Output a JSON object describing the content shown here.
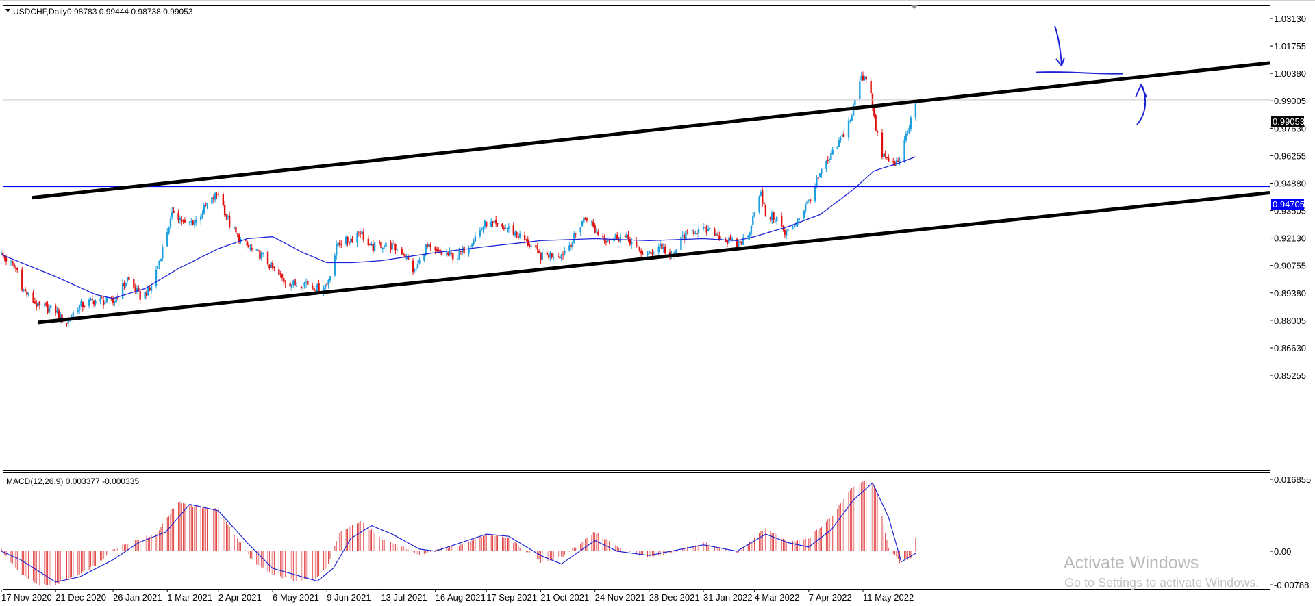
{
  "window": {
    "title_symbol": "USDCHF,Daily",
    "ohlc": "0.98783 0.99444 0.98738 0.99053",
    "macd_label": "MACD(12,26,9) 0.003377 -0.000335"
  },
  "price_axis": {
    "ticks": [
      "1.03130",
      "1.01755",
      "1.00380",
      "0.99005",
      "0.97630",
      "0.96255",
      "0.94880",
      "0.93505",
      "0.92130",
      "0.90755",
      "0.89380",
      "0.88005",
      "0.86630",
      "0.85255"
    ],
    "current_price": "0.99053",
    "level_label": "0.94705"
  },
  "macd_axis": {
    "ticks": [
      "0.016855",
      "0.00",
      "-0.00788"
    ]
  },
  "time_axis": {
    "labels": [
      "17 Nov 2020",
      "21 Dec 2020",
      "26 Jan 2021",
      "1 Mar 2021",
      "2 Apr 2021",
      "6 May 2021",
      "9 Jun 2021",
      "13 Jul 2021",
      "16 Aug 2021",
      "17 Sep 2021",
      "21 Oct 2021",
      "24 Nov 2021",
      "28 Dec 2021",
      "31 Jan 2022",
      "4 Mar 2022",
      "7 Apr 2022",
      "11 May 2022"
    ]
  },
  "watermark": {
    "line1": "Activate Windows",
    "line2": "Go to Settings to activate Windows."
  },
  "colors": {
    "bull": "#1e9fe0",
    "bear": "#e01010",
    "ma": "#1b22d6",
    "level": "#0000ff",
    "trend": "#000000",
    "hist": "#e04040"
  },
  "chart_data": {
    "type": "candlestick",
    "symbol": "USDCHF",
    "timeframe": "Daily",
    "ylim": [
      0.849,
      1.0365
    ],
    "price_path": [
      [
        "17 Nov 2020",
        0.913
      ],
      [
        "27 Nov 2020",
        0.905
      ],
      [
        "1 Dec 2020",
        0.895
      ],
      [
        "10 Dec 2020",
        0.887
      ],
      [
        "21 Dec 2020",
        0.885
      ],
      [
        "27 Dec 2020",
        0.878
      ],
      [
        "4 Jan 2021",
        0.887
      ],
      [
        "14 Jan 2021",
        0.89
      ],
      [
        "26 Jan 2021",
        0.889
      ],
      [
        "4 Feb 2021",
        0.901
      ],
      [
        "12 Feb 2021",
        0.892
      ],
      [
        "18 Feb 2021",
        0.895
      ],
      [
        "24 Feb 2021",
        0.91
      ],
      [
        "1 Mar 2021",
        0.925
      ],
      [
        "5 Mar 2021",
        0.935
      ],
      [
        "12 Mar 2021",
        0.928
      ],
      [
        "19 Mar 2021",
        0.93
      ],
      [
        "26 Mar 2021",
        0.938
      ],
      [
        "2 Apr 2021",
        0.944
      ],
      [
        "9 Apr 2021",
        0.928
      ],
      [
        "16 Apr 2021",
        0.92
      ],
      [
        "23 Apr 2021",
        0.915
      ],
      [
        "30 Apr 2021",
        0.912
      ],
      [
        "6 May 2021",
        0.906
      ],
      [
        "13 May 2021",
        0.9
      ],
      [
        "20 May 2021",
        0.898
      ],
      [
        "27 May 2021",
        0.899
      ],
      [
        "3 Jun 2021",
        0.896
      ],
      [
        "9 Jun 2021",
        0.898
      ],
      [
        "16 Jun 2021",
        0.919
      ],
      [
        "23 Jun 2021",
        0.92
      ],
      [
        "30 Jun 2021",
        0.925
      ],
      [
        "6 Jul 2021",
        0.916
      ],
      [
        "13 Jul 2021",
        0.918
      ],
      [
        "20 Jul 2021",
        0.917
      ],
      [
        "27 Jul 2021",
        0.914
      ],
      [
        "3 Aug 2021",
        0.904
      ],
      [
        "10 Aug 2021",
        0.917
      ],
      [
        "16 Aug 2021",
        0.914
      ],
      [
        "23 Aug 2021",
        0.913
      ],
      [
        "30 Aug 2021",
        0.912
      ],
      [
        "6 Sep 2021",
        0.918
      ],
      [
        "10 Sep 2021",
        0.922
      ],
      [
        "17 Sep 2021",
        0.929
      ],
      [
        "24 Sep 2021",
        0.927
      ],
      [
        "1 Oct 2021",
        0.926
      ],
      [
        "8 Oct 2021",
        0.922
      ],
      [
        "14 Oct 2021",
        0.918
      ],
      [
        "21 Oct 2021",
        0.912
      ],
      [
        "27 Oct 2021",
        0.913
      ],
      [
        "3 Nov 2021",
        0.913
      ],
      [
        "10 Nov 2021",
        0.92
      ],
      [
        "16 Nov 2021",
        0.93
      ],
      [
        "20 Nov 2021",
        0.932
      ],
      [
        "24 Nov 2021",
        0.925
      ],
      [
        "1 Dec 2021",
        0.921
      ],
      [
        "8 Dec 2021",
        0.922
      ],
      [
        "15 Dec 2021",
        0.921
      ],
      [
        "21 Dec 2021",
        0.915
      ],
      [
        "28 Dec 2021",
        0.913
      ],
      [
        "4 Jan 2022",
        0.918
      ],
      [
        "11 Jan 2022",
        0.911
      ],
      [
        "18 Jan 2022",
        0.922
      ],
      [
        "25 Jan 2022",
        0.925
      ],
      [
        "31 Jan 2022",
        0.925
      ],
      [
        "7 Feb 2022",
        0.924
      ],
      [
        "14 Feb 2022",
        0.92
      ],
      [
        "21 Feb 2022",
        0.918
      ],
      [
        "28 Feb 2022",
        0.922
      ],
      [
        "4 Mar 2022",
        0.936
      ],
      [
        "8 Mar 2022",
        0.943
      ],
      [
        "11 Mar 2022",
        0.933
      ],
      [
        "18 Mar 2022",
        0.931
      ],
      [
        "23 Mar 2022",
        0.923
      ],
      [
        "28 Mar 2022",
        0.927
      ],
      [
        "1 Apr 2022",
        0.932
      ],
      [
        "7 Apr 2022",
        0.94
      ],
      [
        "14 Apr 2022",
        0.953
      ],
      [
        "21 Apr 2022",
        0.962
      ],
      [
        "28 Apr 2022",
        0.972
      ],
      [
        "4 May 2022",
        0.983
      ],
      [
        "9 May 2022",
        1.0
      ],
      [
        "12 May 2022",
        1.003
      ],
      [
        "16 May 2022",
        0.995
      ],
      [
        "19 May 2022",
        0.975
      ],
      [
        "23 May 2022",
        0.963
      ],
      [
        "27 May 2022",
        0.96
      ],
      [
        "31 May 2022",
        0.958
      ],
      [
        "3 Jun 2022",
        0.962
      ],
      [
        "8 Jun 2022",
        0.974
      ],
      [
        "13 Jun 2022",
        0.99
      ]
    ],
    "moving_average": [
      [
        "17 Nov 2020",
        0.913
      ],
      [
        "21 Dec 2020",
        0.902
      ],
      [
        "15 Jan 2021",
        0.893
      ],
      [
        "26 Jan 2021",
        0.891
      ],
      [
        "15 Feb 2021",
        0.896
      ],
      [
        "8 Mar 2021",
        0.906
      ],
      [
        "2 Apr 2021",
        0.916
      ],
      [
        "20 Apr 2021",
        0.921
      ],
      [
        "6 May 2021",
        0.922
      ],
      [
        "25 May 2021",
        0.914
      ],
      [
        "9 Jun 2021",
        0.909
      ],
      [
        "25 Jun 2021",
        0.909
      ],
      [
        "13 Jul 2021",
        0.91
      ],
      [
        "30 Jul 2021",
        0.912
      ],
      [
        "16 Aug 2021",
        0.914
      ],
      [
        "17 Sep 2021",
        0.917
      ],
      [
        "21 Oct 2021",
        0.92
      ],
      [
        "24 Nov 2021",
        0.921
      ],
      [
        "28 Dec 2021",
        0.92
      ],
      [
        "31 Jan 2022",
        0.921
      ],
      [
        "21 Feb 2022",
        0.92
      ],
      [
        "4 Mar 2022",
        0.922
      ],
      [
        "25 Mar 2022",
        0.927
      ],
      [
        "14 Apr 2022",
        0.933
      ],
      [
        "4 May 2022",
        0.945
      ],
      [
        "18 May 2022",
        0.955
      ],
      [
        "3 Jun 2022",
        0.959
      ],
      [
        "13 Jun 2022",
        0.962
      ]
    ],
    "horizontal_level": 0.94705,
    "trend_channel": {
      "upper": [
        [
          "6 Dec 2020",
          0.9415
        ],
        [
          "15 Jul 2022",
          0.9925
        ]
      ],
      "lower": [
        [
          "10 Dec 2020",
          0.879
        ],
        [
          "15 Jul 2022",
          0.928
        ]
      ]
    },
    "macd": {
      "ylim": [
        -0.0085,
        0.0175
      ],
      "histogram": [
        [
          "17 Nov 2020",
          0.0003
        ],
        [
          "27 Nov 2020",
          -0.0045
        ],
        [
          "10 Dec 2020",
          -0.008
        ],
        [
          "21 Dec 2020",
          -0.0078
        ],
        [
          "5 Jan 2021",
          -0.0055
        ],
        [
          "20 Jan 2021",
          -0.002
        ],
        [
          "26 Jan 2021",
          0.0005
        ],
        [
          "8 Feb 2021",
          0.0025
        ],
        [
          "22 Feb 2021",
          0.004
        ],
        [
          "1 Mar 2021",
          0.008
        ],
        [
          "8 Mar 2021",
          0.0117
        ],
        [
          "18 Mar 2021",
          0.0105
        ],
        [
          "2 Apr 2021",
          0.0098
        ],
        [
          "12 Apr 2021",
          0.004
        ],
        [
          "25 Apr 2021",
          -0.003
        ],
        [
          "6 May 2021",
          -0.0055
        ],
        [
          "20 May 2021",
          -0.0068
        ],
        [
          "3 Jun 2021",
          -0.0063
        ],
        [
          "9 Jun 2021",
          -0.004
        ],
        [
          "17 Jun 2021",
          0.0045
        ],
        [
          "30 Jun 2021",
          0.007
        ],
        [
          "13 Jul 2021",
          0.003
        ],
        [
          "27 Jul 2021",
          0.001
        ],
        [
          "6 Aug 2021",
          -0.001
        ],
        [
          "16 Aug 2021",
          0.0005
        ],
        [
          "1 Sep 2021",
          0.0015
        ],
        [
          "17 Sep 2021",
          0.004
        ],
        [
          "1 Oct 2021",
          0.003
        ],
        [
          "21 Oct 2021",
          -0.0025
        ],
        [
          "3 Nov 2021",
          -0.0015
        ],
        [
          "24 Nov 2021",
          0.0045
        ],
        [
          "8 Dec 2021",
          0.001
        ],
        [
          "28 Dec 2021",
          -0.0015
        ],
        [
          "10 Jan 2022",
          -0.0005
        ],
        [
          "31 Jan 2022",
          0.002
        ],
        [
          "21 Feb 2022",
          -0.0005
        ],
        [
          "4 Mar 2022",
          0.003
        ],
        [
          "11 Mar 2022",
          0.0055
        ],
        [
          "25 Mar 2022",
          0.002
        ],
        [
          "7 Apr 2022",
          0.003
        ],
        [
          "21 Apr 2022",
          0.008
        ],
        [
          "4 May 2022",
          0.015
        ],
        [
          "13 May 2022",
          0.017
        ],
        [
          "19 May 2022",
          0.015
        ],
        [
          "27 May 2022",
          0.001
        ],
        [
          "3 Jun 2022",
          -0.0025
        ],
        [
          "10 Jun 2022",
          -0.0015
        ],
        [
          "13 Jun 2022",
          0.0035
        ]
      ],
      "signal": [
        [
          "17 Nov 2020",
          0.0
        ],
        [
          "29 Nov 2020",
          -0.002
        ],
        [
          "21 Dec 2020",
          -0.0072
        ],
        [
          "5 Jan 2021",
          -0.006
        ],
        [
          "26 Jan 2021",
          -0.002
        ],
        [
          "11 Feb 2021",
          0.002
        ],
        [
          "28 Feb 2021",
          0.0045
        ],
        [
          "15 Mar 2021",
          0.011
        ],
        [
          "2 Apr 2021",
          0.0095
        ],
        [
          "20 Apr 2021",
          0.002
        ],
        [
          "6 May 2021",
          -0.004
        ],
        [
          "3 Jun 2021",
          -0.007
        ],
        [
          "13 Jun 2021",
          -0.004
        ],
        [
          "24 Jun 2021",
          0.003
        ],
        [
          "7 Jul 2021",
          0.006
        ],
        [
          "20 Jul 2021",
          0.004
        ],
        [
          "6 Aug 2021",
          0.0005
        ],
        [
          "16 Aug 2021",
          0.0
        ],
        [
          "17 Sep 2021",
          0.004
        ],
        [
          "1 Oct 2021",
          0.0035
        ],
        [
          "21 Oct 2021",
          -0.001
        ],
        [
          "3 Nov 2021",
          -0.003
        ],
        [
          "24 Nov 2021",
          0.0025
        ],
        [
          "8 Dec 2021",
          0.0
        ],
        [
          "28 Dec 2021",
          -0.001
        ],
        [
          "31 Jan 2022",
          0.0015
        ],
        [
          "21 Feb 2022",
          0.0
        ],
        [
          "11 Mar 2022",
          0.004
        ],
        [
          "25 Mar 2022",
          0.002
        ],
        [
          "7 Apr 2022",
          0.001
        ],
        [
          "21 Apr 2022",
          0.005
        ],
        [
          "5 May 2022",
          0.012
        ],
        [
          "17 May 2022",
          0.016
        ],
        [
          "27 May 2022",
          0.008
        ],
        [
          "4 Jun 2022",
          -0.0025
        ],
        [
          "13 Jun 2022",
          -0.0005
        ]
      ]
    }
  }
}
